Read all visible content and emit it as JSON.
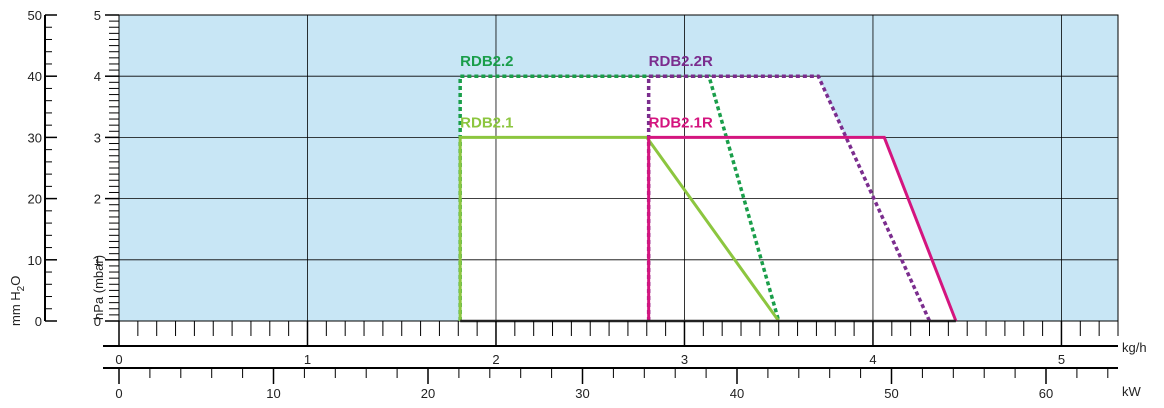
{
  "chart_data": {
    "type": "area",
    "y_axis_primary": {
      "label": "hPa (mbar)",
      "ticks": [
        "0",
        "1",
        "2",
        "3",
        "4",
        "5"
      ],
      "ylim": [
        0,
        5
      ]
    },
    "y_axis_secondary": {
      "label_parts": [
        "mm H",
        "2",
        "O"
      ],
      "ticks": [
        "0",
        "10",
        "20",
        "30",
        "40",
        "50"
      ],
      "ylim": [
        0,
        50
      ]
    },
    "x_axis_primary": {
      "label": "kg/h",
      "ticks": [
        "0",
        "1",
        "2",
        "3",
        "4",
        "5"
      ],
      "xlim": [
        0,
        5.3
      ]
    },
    "x_axis_secondary": {
      "label": "kW",
      "ticks": [
        "0",
        "10",
        "20",
        "30",
        "40",
        "50",
        "60"
      ],
      "kw_per_kgh": 12.2
    },
    "grid": true,
    "colors": {
      "background": "#c8e6f5",
      "envelope_fill": "#ffffff",
      "grid": "#000000"
    },
    "series": [
      {
        "name": "RDB2.2",
        "color": "#1a9e4a",
        "dash": "dotted",
        "points": [
          [
            1.81,
            0
          ],
          [
            1.81,
            4.0
          ],
          [
            3.13,
            4.0
          ],
          [
            3.5,
            0
          ]
        ]
      },
      {
        "name": "RDB2.1",
        "color": "#8cc63f",
        "dash": "solid",
        "points": [
          [
            1.81,
            0
          ],
          [
            1.81,
            3.0
          ],
          [
            2.8,
            3.0
          ],
          [
            3.5,
            0
          ]
        ]
      },
      {
        "name": "RDB2.2R",
        "color": "#7b2d8e",
        "dash": "dotted",
        "points": [
          [
            2.81,
            0
          ],
          [
            2.81,
            4.0
          ],
          [
            3.71,
            4.0
          ],
          [
            4.3,
            0
          ]
        ]
      },
      {
        "name": "RDB2.1R",
        "color": "#d4157f",
        "dash": "solid",
        "points": [
          [
            2.81,
            0
          ],
          [
            2.81,
            3.0
          ],
          [
            4.06,
            3.0
          ],
          [
            4.44,
            0
          ]
        ]
      }
    ],
    "fill_regions": [
      [
        [
          1.81,
          0
        ],
        [
          1.81,
          4.0
        ],
        [
          3.13,
          4.0
        ],
        [
          3.5,
          0
        ]
      ],
      [
        [
          2.81,
          0
        ],
        [
          2.81,
          4.0
        ],
        [
          3.71,
          4.0
        ],
        [
          4.3,
          0
        ]
      ],
      [
        [
          2.81,
          0
        ],
        [
          2.81,
          3.0
        ],
        [
          4.06,
          3.0
        ],
        [
          4.44,
          0
        ]
      ]
    ]
  }
}
